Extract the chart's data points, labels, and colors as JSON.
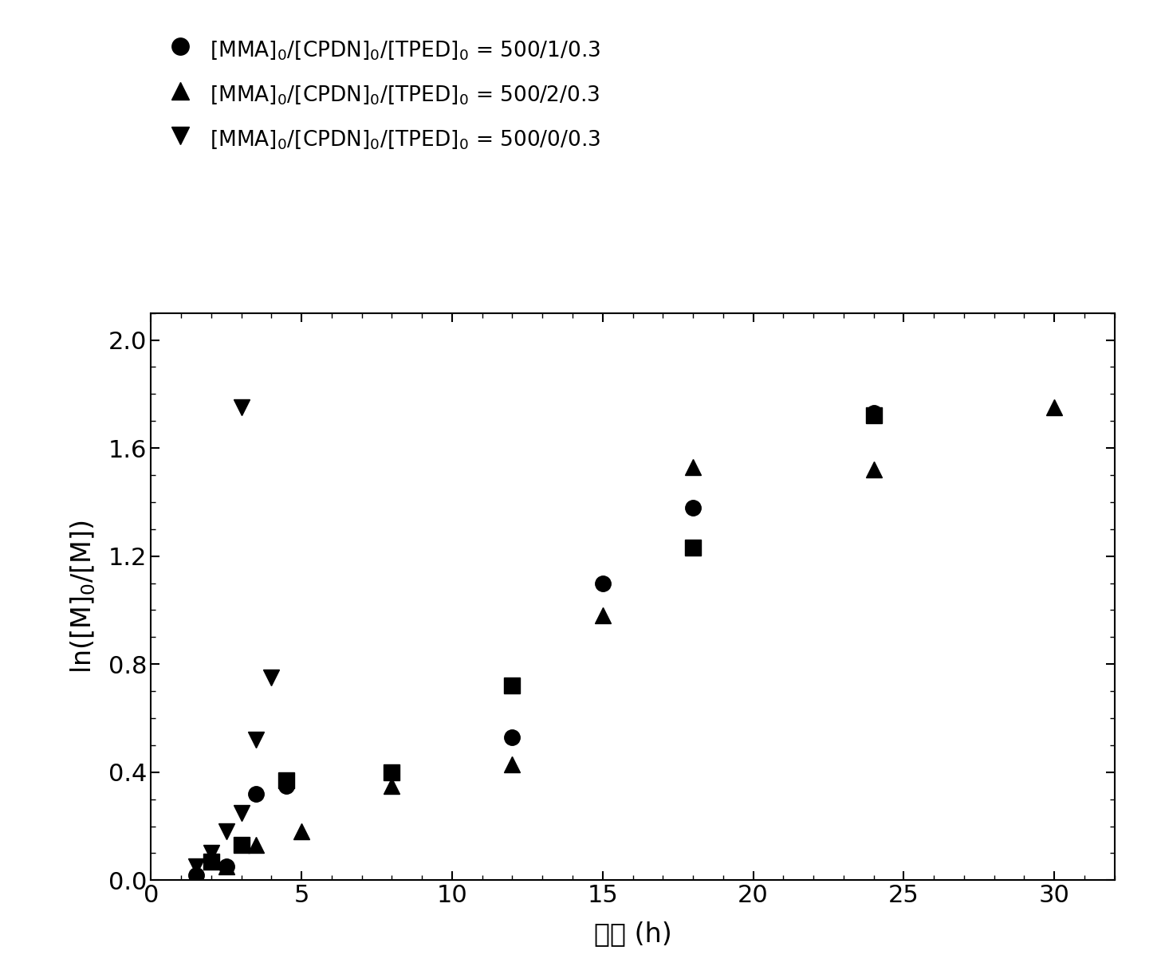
{
  "series_circle": {
    "label": "[MMA]$_0$/[CPDN]$_0$/[TPED]$_0$ = 500/1/0.3",
    "marker": "o",
    "x": [
      1.5,
      2.5,
      3.5,
      4.5,
      8.0,
      12.0,
      15.0,
      18.0,
      24.0
    ],
    "y": [
      0.02,
      0.05,
      0.32,
      0.35,
      0.4,
      0.53,
      1.1,
      1.38,
      1.73
    ]
  },
  "series_triangle_up": {
    "label": "[MMA]$_0$/[CPDN]$_0$/[TPED]$_0$ = 500/2/0.3",
    "marker": "^",
    "x": [
      1.5,
      2.5,
      3.5,
      5.0,
      8.0,
      12.0,
      15.0,
      18.0,
      24.0,
      30.0
    ],
    "y": [
      0.01,
      0.05,
      0.13,
      0.18,
      0.35,
      0.43,
      0.98,
      1.53,
      1.52,
      1.75
    ]
  },
  "series_triangle_down": {
    "label": "[MMA]$_0$/[CPDN]$_0$/[TPED]$_0$ = 500/0/0.3",
    "marker": "v",
    "x": [
      1.5,
      2.0,
      2.5,
      3.0,
      3.5,
      4.0
    ],
    "y": [
      0.05,
      0.1,
      0.18,
      0.25,
      0.52,
      0.75
    ]
  },
  "series_square": {
    "marker": "s",
    "x": [
      2.0,
      3.0,
      4.5,
      8.0,
      12.0,
      18.0,
      24.0
    ],
    "y": [
      0.07,
      0.13,
      0.37,
      0.4,
      0.72,
      1.23,
      1.72
    ]
  },
  "triangle_down_extra": {
    "x": [
      3.0
    ],
    "y": [
      1.75
    ]
  },
  "xlabel": "时间 (h)",
  "ylabel": "ln([M]$_0$/[M])",
  "xlim": [
    0,
    32
  ],
  "ylim": [
    0.0,
    2.1
  ],
  "xticks": [
    0,
    5,
    10,
    15,
    20,
    25,
    30
  ],
  "yticks": [
    0.0,
    0.4,
    0.8,
    1.2,
    1.6,
    2.0
  ],
  "label_fontsize": 24,
  "tick_fontsize": 22,
  "legend_fontsize": 19,
  "marker_size": 14
}
